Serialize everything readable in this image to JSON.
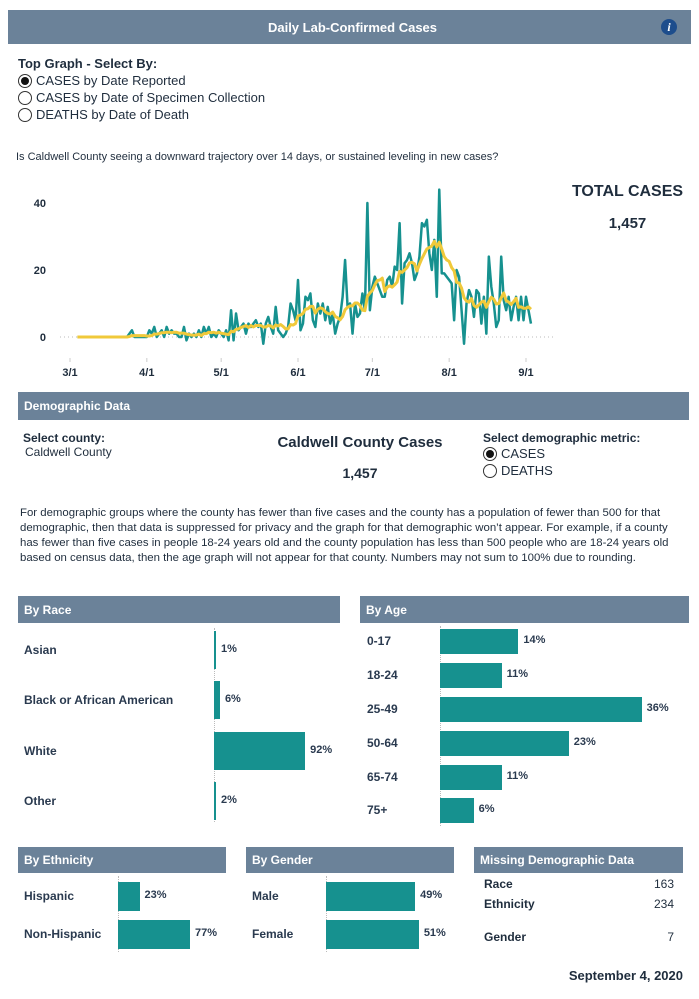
{
  "header": {
    "title": "Daily Lab-Confirmed Cases",
    "info_icon": "info-icon"
  },
  "top_graph": {
    "label": "Top Graph - Select By:",
    "options": [
      {
        "label": "CASES by Date Reported",
        "selected": true
      },
      {
        "label": "CASES by Date of Specimen Collection",
        "selected": false
      },
      {
        "label": "DEATHS by Date of Death",
        "selected": false
      }
    ]
  },
  "question": "Is Caldwell County seeing a downward trajectory over 14 days, or sustained leveling in new cases?",
  "total": {
    "label": "TOTAL CASES",
    "value": "1,457"
  },
  "demographic": {
    "title": "Demographic Data",
    "county_label": "Select county:",
    "county_value": "Caldwell County",
    "cases_title": "Caldwell County Cases",
    "cases_value": "1,457",
    "metric_label": "Select demographic metric:",
    "metric_options": [
      {
        "label": "CASES",
        "selected": true
      },
      {
        "label": "DEATHS",
        "selected": false
      }
    ],
    "note": "For demographic groups where the county has fewer than five cases and the county has a population of fewer than 500 for that demographic, then that data is suppressed for privacy and the graph for that demographic won’t appear. For example, if a county has fewer than five cases in people 18-24 years old and the county population has less than 500 people who are 18-24 years old based on census data, then the age graph will not appear for that county. Numbers may not sum to 100% due to rounding."
  },
  "missing": {
    "title": "Missing Demographic Data",
    "rows": [
      {
        "label": "Race",
        "value": "163"
      },
      {
        "label": "Ethnicity",
        "value": "234"
      },
      {
        "label": "Gender",
        "value": "7"
      }
    ]
  },
  "date": "September 4, 2020",
  "colors": {
    "header": "#6b8299",
    "bar": "#16918f",
    "daily_line": "#16918f",
    "average_line": "#f0c93a"
  },
  "chart_data": [
    {
      "type": "line",
      "start_date": "3/4",
      "x_ticks": [
        "3/1",
        "4/1",
        "5/1",
        "6/1",
        "7/1",
        "8/1",
        "9/1"
      ],
      "y_ticks": [
        "0",
        "20",
        "40"
      ],
      "ylim": [
        -5,
        45
      ],
      "series": [
        {
          "values": [
            0,
            0,
            0,
            0,
            0,
            0,
            0,
            0,
            0,
            0,
            0,
            0,
            0,
            0,
            0,
            0,
            0,
            0,
            0,
            0,
            0,
            1,
            2,
            0,
            0,
            0,
            0,
            0,
            0,
            2,
            1,
            3,
            0,
            1,
            2,
            0,
            3,
            1,
            2,
            1,
            1,
            0,
            0,
            3,
            -1,
            1,
            0,
            1,
            0,
            2,
            0,
            3,
            1,
            3,
            0,
            1,
            0,
            2,
            1,
            0,
            2,
            -1,
            8,
            -1,
            7,
            2,
            3,
            4,
            1,
            4,
            3,
            4,
            5,
            3,
            4,
            -2,
            4,
            6,
            3,
            1,
            9,
            2,
            1,
            0,
            1,
            3,
            10,
            8,
            5,
            17,
            2,
            4,
            12,
            11,
            13,
            5,
            3,
            10,
            7,
            10,
            5,
            9,
            4,
            7,
            1,
            4,
            6,
            12,
            23,
            9,
            10,
            1,
            10,
            6,
            7,
            13,
            8,
            40,
            8,
            15,
            18,
            16,
            14,
            12,
            12,
            17,
            18,
            15,
            21,
            20,
            34,
            10,
            22,
            23,
            25,
            22,
            17,
            19,
            24,
            34,
            33,
            35,
            25,
            20,
            29,
            12,
            44,
            19,
            19,
            18,
            17,
            16,
            5,
            20,
            18,
            8,
            -2,
            10,
            14,
            12,
            6,
            14,
            13,
            4,
            12,
            1,
            24,
            15,
            10,
            3,
            5,
            24,
            11,
            8,
            12,
            5,
            9,
            12,
            5,
            12,
            5,
            12,
            8,
            4
          ]
        },
        {
          "type": "moving-average"
        }
      ]
    },
    {
      "type": "bar",
      "title": "By Race",
      "categories": [
        "Asian",
        "Black or African American",
        "White",
        "Other"
      ],
      "values": [
        1,
        6,
        92,
        2
      ],
      "labels": [
        "1%",
        "6%",
        "92%",
        "2%"
      ]
    },
    {
      "type": "bar",
      "title": "By Age",
      "categories": [
        "0-17",
        "18-24",
        "25-49",
        "50-64",
        "65-74",
        "75+"
      ],
      "values": [
        14,
        11,
        36,
        23,
        11,
        6
      ],
      "labels": [
        "14%",
        "11%",
        "36%",
        "23%",
        "11%",
        "6%"
      ]
    },
    {
      "type": "bar",
      "title": "By Ethnicity",
      "categories": [
        "Hispanic",
        "Non-Hispanic"
      ],
      "values": [
        23,
        77
      ],
      "labels": [
        "23%",
        "77%"
      ]
    },
    {
      "type": "bar",
      "title": "By Gender",
      "categories": [
        "Male",
        "Female"
      ],
      "values": [
        49,
        51
      ],
      "labels": [
        "49%",
        "51%"
      ]
    }
  ]
}
